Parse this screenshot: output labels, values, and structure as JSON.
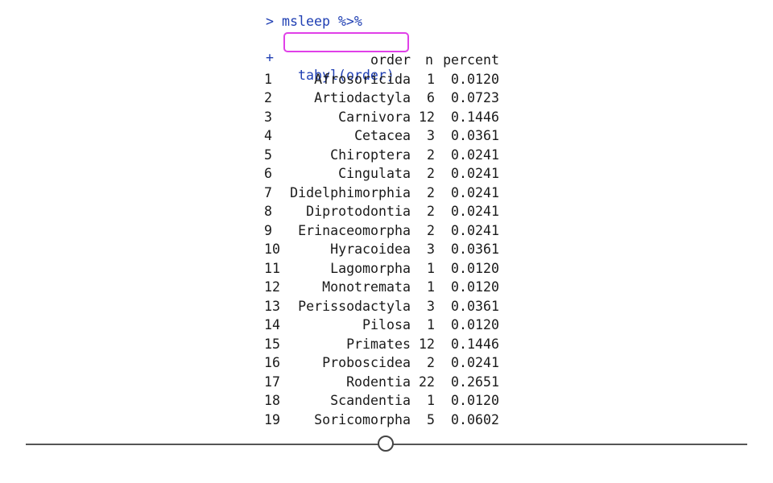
{
  "console": {
    "prompt_symbol": ">",
    "command_line1": "msleep %>%",
    "continuation_symbol": "+",
    "command_line2": "tabyl(order)"
  },
  "table": {
    "columns": [
      "order",
      "n",
      "percent"
    ],
    "rows": [
      {
        "idx": "1",
        "order": "Afrosoricida",
        "n": "1",
        "percent": "0.0120"
      },
      {
        "idx": "2",
        "order": "Artiodactyla",
        "n": "6",
        "percent": "0.0723"
      },
      {
        "idx": "3",
        "order": "Carnivora",
        "n": "12",
        "percent": "0.1446"
      },
      {
        "idx": "4",
        "order": "Cetacea",
        "n": "3",
        "percent": "0.0361"
      },
      {
        "idx": "5",
        "order": "Chiroptera",
        "n": "2",
        "percent": "0.0241"
      },
      {
        "idx": "6",
        "order": "Cingulata",
        "n": "2",
        "percent": "0.0241"
      },
      {
        "idx": "7",
        "order": "Didelphimorphia",
        "n": "2",
        "percent": "0.0241"
      },
      {
        "idx": "8",
        "order": "Diprotodontia",
        "n": "2",
        "percent": "0.0241"
      },
      {
        "idx": "9",
        "order": "Erinaceomorpha",
        "n": "2",
        "percent": "0.0241"
      },
      {
        "idx": "10",
        "order": "Hyracoidea",
        "n": "3",
        "percent": "0.0361"
      },
      {
        "idx": "11",
        "order": "Lagomorpha",
        "n": "1",
        "percent": "0.0120"
      },
      {
        "idx": "12",
        "order": "Monotremata",
        "n": "1",
        "percent": "0.0120"
      },
      {
        "idx": "13",
        "order": "Perissodactyla",
        "n": "3",
        "percent": "0.0361"
      },
      {
        "idx": "14",
        "order": "Pilosa",
        "n": "1",
        "percent": "0.0120"
      },
      {
        "idx": "15",
        "order": "Primates",
        "n": "12",
        "percent": "0.1446"
      },
      {
        "idx": "16",
        "order": "Proboscidea",
        "n": "2",
        "percent": "0.0241"
      },
      {
        "idx": "17",
        "order": "Rodentia",
        "n": "22",
        "percent": "0.2651"
      },
      {
        "idx": "18",
        "order": "Scandentia",
        "n": "1",
        "percent": "0.0120"
      },
      {
        "idx": "19",
        "order": "Soricomorpha",
        "n": "5",
        "percent": "0.0602"
      }
    ]
  },
  "colors": {
    "command": "#1f3fb3",
    "highlight": "#e040e8",
    "text": "#1a1a1a"
  },
  "scrubber": {
    "icon": "slider-knob-icon"
  }
}
